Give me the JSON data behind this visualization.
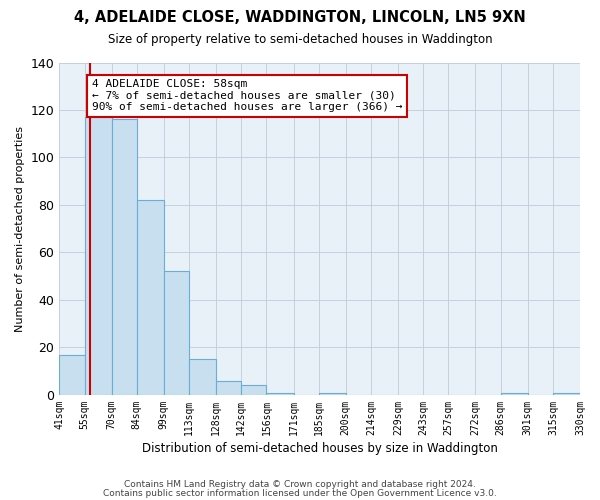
{
  "title": "4, ADELAIDE CLOSE, WADDINGTON, LINCOLN, LN5 9XN",
  "subtitle": "Size of property relative to semi-detached houses in Waddington",
  "xlabel": "Distribution of semi-detached houses by size in Waddington",
  "ylabel": "Number of semi-detached properties",
  "bin_edges": [
    41,
    55,
    70,
    84,
    99,
    113,
    128,
    142,
    156,
    171,
    185,
    200,
    214,
    229,
    243,
    257,
    272,
    286,
    301,
    315,
    330
  ],
  "bin_counts": [
    17,
    117,
    116,
    82,
    52,
    15,
    6,
    4,
    1,
    0,
    1,
    0,
    0,
    0,
    0,
    0,
    0,
    1,
    0,
    1
  ],
  "bin_labels": [
    "41sqm",
    "55sqm",
    "70sqm",
    "84sqm",
    "99sqm",
    "113sqm",
    "128sqm",
    "142sqm",
    "156sqm",
    "171sqm",
    "185sqm",
    "200sqm",
    "214sqm",
    "229sqm",
    "243sqm",
    "257sqm",
    "272sqm",
    "286sqm",
    "301sqm",
    "315sqm",
    "330sqm"
  ],
  "bar_color": "#c8dff0",
  "bar_edge_color": "#6aaed6",
  "property_line_x": 58,
  "property_line_color": "#cc0000",
  "annotation_title": "4 ADELAIDE CLOSE: 58sqm",
  "annotation_line1": "← 7% of semi-detached houses are smaller (30)",
  "annotation_line2": "90% of semi-detached houses are larger (366) →",
  "annotation_box_color": "#ffffff",
  "annotation_box_edge": "#cc0000",
  "ylim": [
    0,
    140
  ],
  "yticks": [
    0,
    20,
    40,
    60,
    80,
    100,
    120,
    140
  ],
  "footer1": "Contains HM Land Registry data © Crown copyright and database right 2024.",
  "footer2": "Contains public sector information licensed under the Open Government Licence v3.0.",
  "background_color": "#ffffff",
  "plot_bg_color": "#e8f0f8"
}
